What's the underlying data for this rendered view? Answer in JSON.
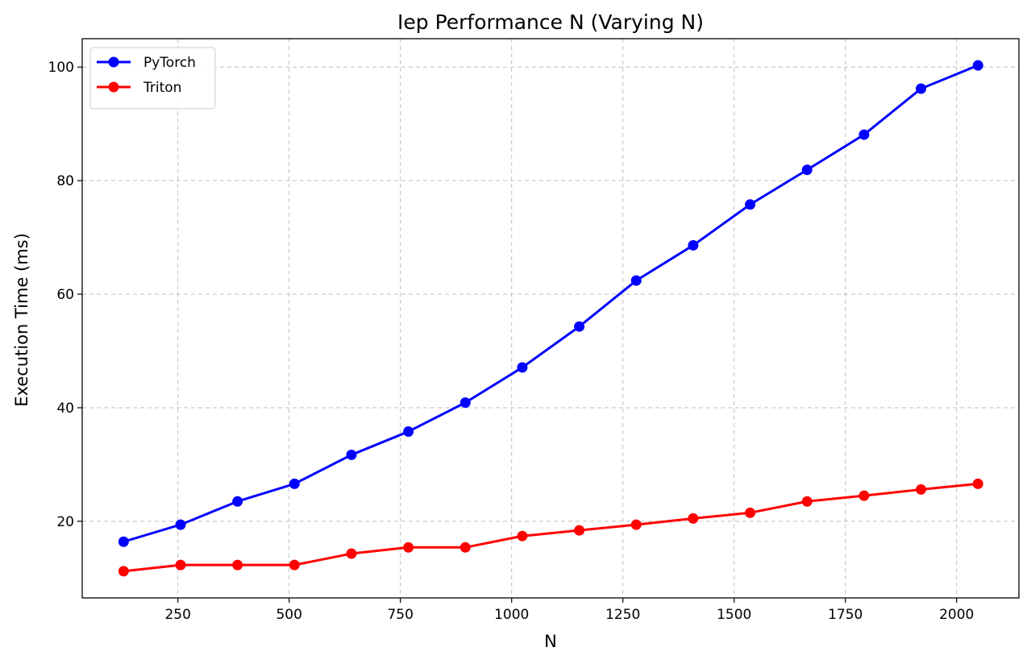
{
  "chart_data": {
    "type": "line",
    "title": "Iep Performance N (Varying N)",
    "xlabel": "N",
    "ylabel": "Execution Time (ms)",
    "xlim": [
      35,
      2140
    ],
    "ylim": [
      6.5,
      105
    ],
    "xticks": [
      250,
      500,
      750,
      1000,
      1250,
      1500,
      1750,
      2000
    ],
    "yticks": [
      20,
      40,
      60,
      80,
      100
    ],
    "grid": true,
    "legend_position": "top-left",
    "x": [
      128,
      256,
      384,
      512,
      640,
      768,
      896,
      1024,
      1152,
      1280,
      1408,
      1536,
      1664,
      1792,
      1920,
      2048
    ],
    "series": [
      {
        "name": "PyTorch",
        "color": "#0000ff",
        "marker": "circle",
        "values": [
          16.4,
          19.4,
          23.5,
          26.6,
          31.7,
          35.8,
          40.9,
          47.1,
          54.3,
          62.4,
          68.6,
          75.8,
          81.9,
          88.1,
          96.2,
          100.3
        ]
      },
      {
        "name": "Triton",
        "color": "#ff0000",
        "marker": "circle",
        "values": [
          11.2,
          12.3,
          12.3,
          12.3,
          14.3,
          15.4,
          15.4,
          17.4,
          18.4,
          19.4,
          20.5,
          21.5,
          23.5,
          24.5,
          25.6,
          26.6
        ]
      }
    ]
  }
}
